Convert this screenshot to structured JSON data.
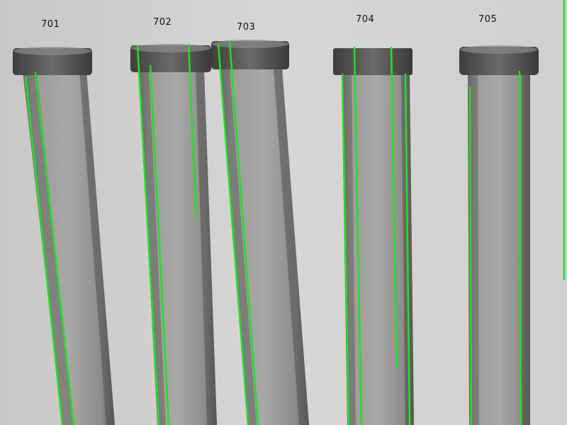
{
  "labels": {
    "tube_701": "701",
    "tube_702": "702",
    "tube_703": "703",
    "tube_704": "704",
    "tube_705": "705"
  },
  "colors": {
    "background": "#d3d3d3",
    "detection_line": "#22e022",
    "tube_body": "#9a9a9a",
    "tube_cap": "#5a5a5a"
  }
}
